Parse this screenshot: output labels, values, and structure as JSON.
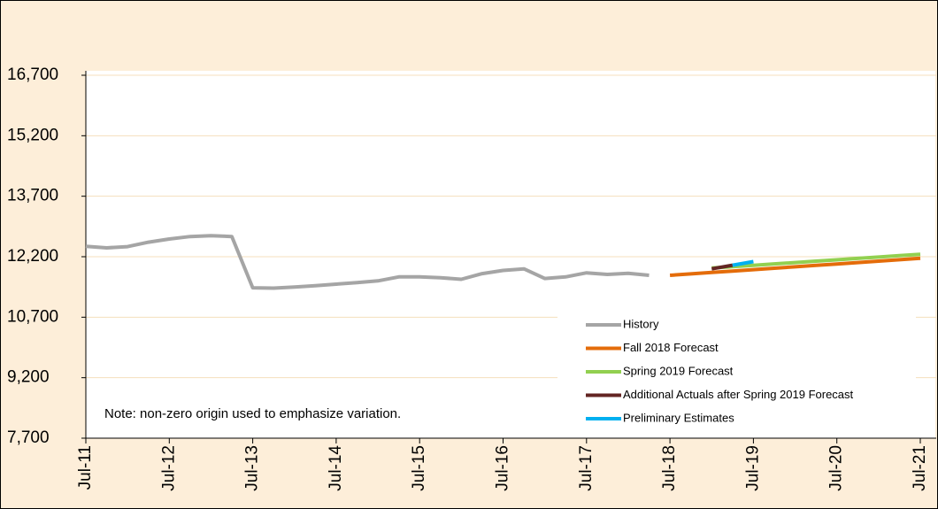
{
  "chart_data": {
    "type": "line",
    "categories": [
      "Jul-11",
      null,
      null,
      null,
      "Jul-12",
      null,
      null,
      null,
      "Jul-13",
      null,
      null,
      null,
      "Jul-14",
      null,
      null,
      null,
      "Jul-15",
      null,
      null,
      null,
      "Jul-16",
      null,
      null,
      null,
      "Jul-17",
      null,
      null,
      null,
      "Jul-18",
      null,
      null,
      null,
      "Jul-19",
      null,
      null,
      null,
      "Jul-20",
      null,
      null,
      null,
      "Jul-21"
    ],
    "series": [
      {
        "name": "History",
        "color": "#a5a5a5",
        "values": [
          12460,
          12420,
          12450,
          12560,
          12640,
          12700,
          12720,
          12700,
          11430,
          11420,
          11450,
          11480,
          11520,
          11560,
          11600,
          11700,
          11700,
          11680,
          11640,
          11780,
          11860,
          11900,
          11660,
          11700,
          11800,
          11760,
          11790,
          11740,
          null,
          null,
          null,
          null,
          null,
          null,
          null,
          null,
          null,
          null,
          null,
          null,
          null
        ]
      },
      {
        "name": "Fall 2018 Forecast",
        "color": "#e46c0a",
        "values": [
          null,
          null,
          null,
          null,
          null,
          null,
          null,
          null,
          null,
          null,
          null,
          null,
          null,
          null,
          null,
          null,
          null,
          null,
          null,
          null,
          null,
          null,
          null,
          null,
          null,
          null,
          null,
          null,
          11740,
          11775,
          11810,
          11845,
          11880,
          11915,
          11950,
          11985,
          12020,
          12055,
          12090,
          12125,
          12160
        ]
      },
      {
        "name": "Spring 2019 Forecast",
        "color": "#92d050",
        "values": [
          null,
          null,
          null,
          null,
          null,
          null,
          null,
          null,
          null,
          null,
          null,
          null,
          null,
          null,
          null,
          null,
          null,
          null,
          null,
          null,
          null,
          null,
          null,
          null,
          null,
          null,
          null,
          null,
          null,
          null,
          11920,
          11954,
          11988,
          12022,
          12056,
          12090,
          12124,
          12158,
          12192,
          12226,
          12260
        ]
      },
      {
        "name": "Additional Actuals after Spring 2019 Forecast",
        "color": "#632523",
        "values": [
          null,
          null,
          null,
          null,
          null,
          null,
          null,
          null,
          null,
          null,
          null,
          null,
          null,
          null,
          null,
          null,
          null,
          null,
          null,
          null,
          null,
          null,
          null,
          null,
          null,
          null,
          null,
          null,
          null,
          null,
          11900,
          11990,
          null,
          null,
          null,
          null,
          null,
          null,
          null,
          null,
          null
        ]
      },
      {
        "name": "Preliminary Estimates",
        "color": "#00b0f0",
        "values": [
          null,
          null,
          null,
          null,
          null,
          null,
          null,
          null,
          null,
          null,
          null,
          null,
          null,
          null,
          null,
          null,
          null,
          null,
          null,
          null,
          null,
          null,
          null,
          null,
          null,
          null,
          null,
          null,
          null,
          null,
          null,
          11990,
          12080,
          null,
          null,
          null,
          null,
          null,
          null,
          null,
          null
        ]
      }
    ],
    "ylim": [
      7700,
      16700
    ],
    "yticks": [
      {
        "value": 7700,
        "label": "7,700"
      },
      {
        "value": 9200,
        "label": "9,200"
      },
      {
        "value": 10700,
        "label": "10,700"
      },
      {
        "value": 12200,
        "label": "12,200"
      },
      {
        "value": 13700,
        "label": "13,700"
      },
      {
        "value": 15200,
        "label": "15,200"
      },
      {
        "value": 16700,
        "label": "16,700"
      }
    ],
    "grid": true,
    "legend": "lower-right",
    "annotation": "Note: non-zero origin used to emphasize variation."
  }
}
